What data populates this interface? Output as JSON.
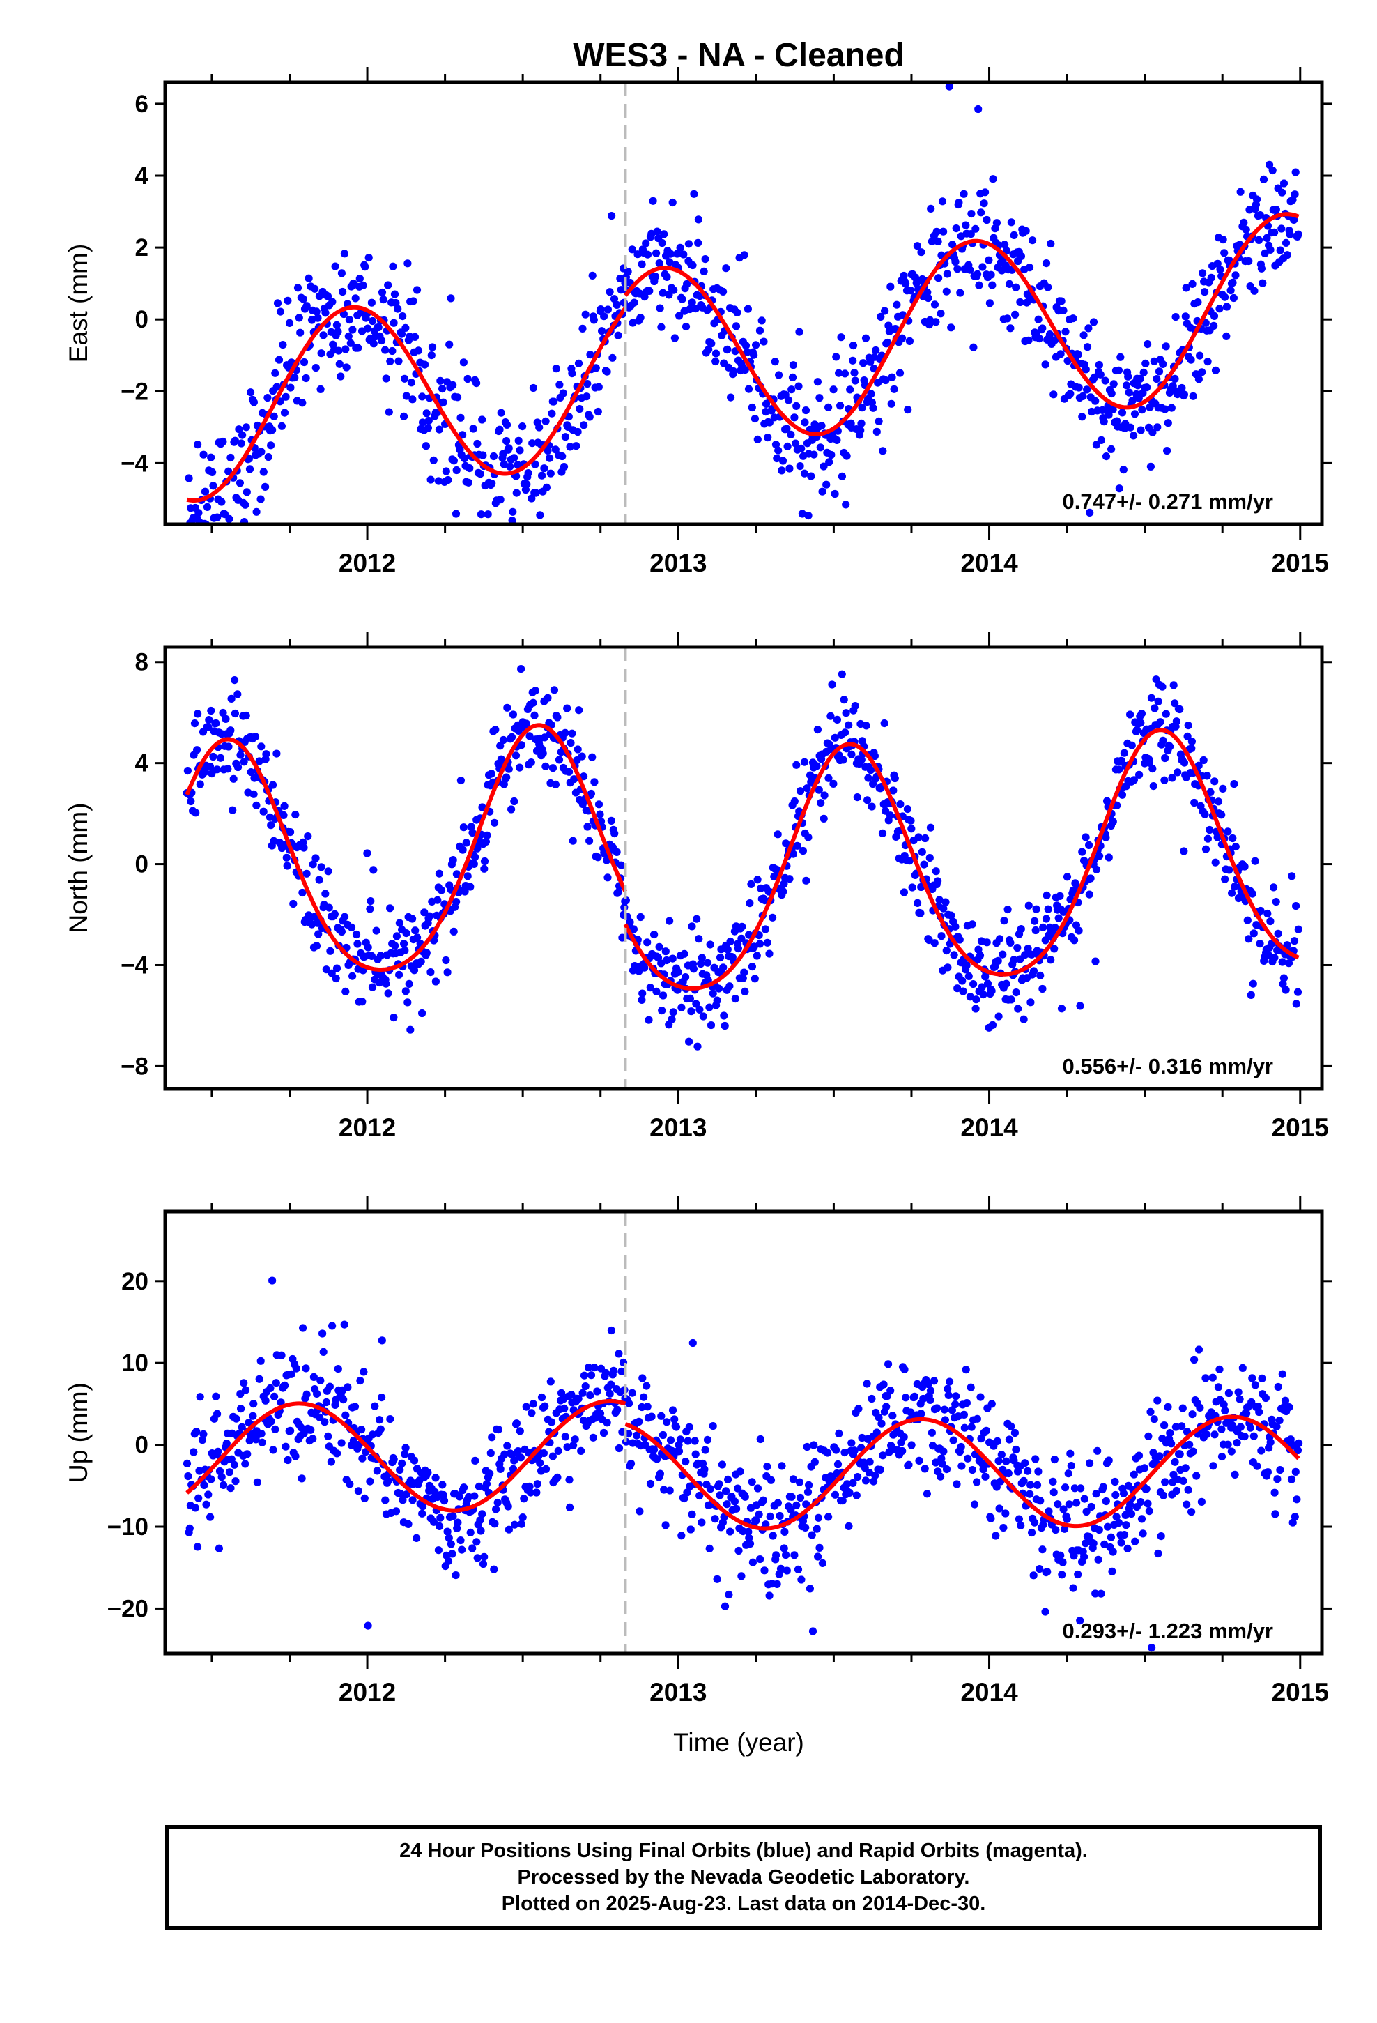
{
  "title": "WES3  - NA - Cleaned",
  "colors": {
    "final_orbits": "#0000ff",
    "model_fit": "#ff0000",
    "break_line": "#bbbbbb",
    "frame": "#000000"
  },
  "xaxis": {
    "label": "Time (year)",
    "ticks": [
      "2012",
      "2013",
      "2014",
      "2015"
    ]
  },
  "chart_data": [
    {
      "type": "scatter",
      "component": "east",
      "ylabel": "East (mm)",
      "xlim": [
        2011.35,
        2015.07
      ],
      "ylim": [
        -5.7,
        6.6
      ],
      "yticks": [
        -4,
        -2,
        0,
        2,
        4,
        6
      ],
      "xticks": [
        2012,
        2013,
        2014,
        2015
      ],
      "rate_label": "0.747+/- 0.271 mm/yr",
      "break_epoch": 2012.83,
      "x_start": 2011.42,
      "x_end": 2014.995,
      "model": {
        "intercept": -1.38,
        "slope": 0.747,
        "ref_year": 2013.0,
        "offset_at_break": 0.35,
        "annual_amplitude": 2.5,
        "annual_peak_fraction": 0.95,
        "semiannual_amplitude": 0.0,
        "semiannual_peak_fraction": 0.0
      },
      "scatter_sigma": 0.9,
      "n_points": 1150,
      "series": [
        {
          "name": "Final Orbits (blue)"
        },
        {
          "name": "model"
        }
      ]
    },
    {
      "type": "scatter",
      "component": "north",
      "ylabel": "North (mm)",
      "xlim": [
        2011.35,
        2015.07
      ],
      "ylim": [
        -8.9,
        8.6
      ],
      "yticks": [
        -8,
        -4,
        0,
        4,
        8
      ],
      "xticks": [
        2012,
        2013,
        2014,
        2015
      ],
      "rate_label": "0.556+/- 0.316 mm/yr",
      "break_epoch": 2012.83,
      "x_start": 2011.42,
      "x_end": 2014.995,
      "model": {
        "intercept": 0.45,
        "slope": 0.556,
        "ref_year": 2013.0,
        "offset_at_break": -1.3,
        "annual_amplitude": 4.7,
        "annual_peak_fraction": 0.55,
        "semiannual_amplitude": 0.6,
        "semiannual_peak_fraction": 0.05
      },
      "scatter_sigma": 1.0,
      "n_points": 1150,
      "series": [
        {
          "name": "Final Orbits (blue)"
        },
        {
          "name": "model"
        }
      ]
    },
    {
      "type": "scatter",
      "component": "up",
      "ylabel": "Up (mm)",
      "xlim": [
        2011.35,
        2015.07
      ],
      "ylim": [
        -25.5,
        28.5
      ],
      "yticks": [
        -20,
        -10,
        0,
        10,
        20
      ],
      "xticks": [
        2012,
        2013,
        2014,
        2015
      ],
      "rate_label": "0.293+/- 1.223 mm/yr",
      "break_epoch": 2012.83,
      "x_start": 2011.42,
      "x_end": 2014.995,
      "model": {
        "intercept": -1.2,
        "slope": 0.293,
        "ref_year": 2013.0,
        "offset_at_break": -2.5,
        "annual_amplitude": 6.6,
        "annual_peak_fraction": 0.78,
        "semiannual_amplitude": 0.0,
        "semiannual_peak_fraction": 0.0
      },
      "scatter_sigma": 3.8,
      "n_points": 1150,
      "series": [
        {
          "name": "Final Orbits (blue)"
        },
        {
          "name": "model"
        }
      ]
    }
  ],
  "footer": {
    "line1": "24 Hour Positions Using Final Orbits (blue) and Rapid Orbits (magenta).",
    "line2": "Processed by the Nevada Geodetic Laboratory.",
    "line3": "Plotted on 2025-Aug-23. Last data on 2014-Dec-30."
  }
}
